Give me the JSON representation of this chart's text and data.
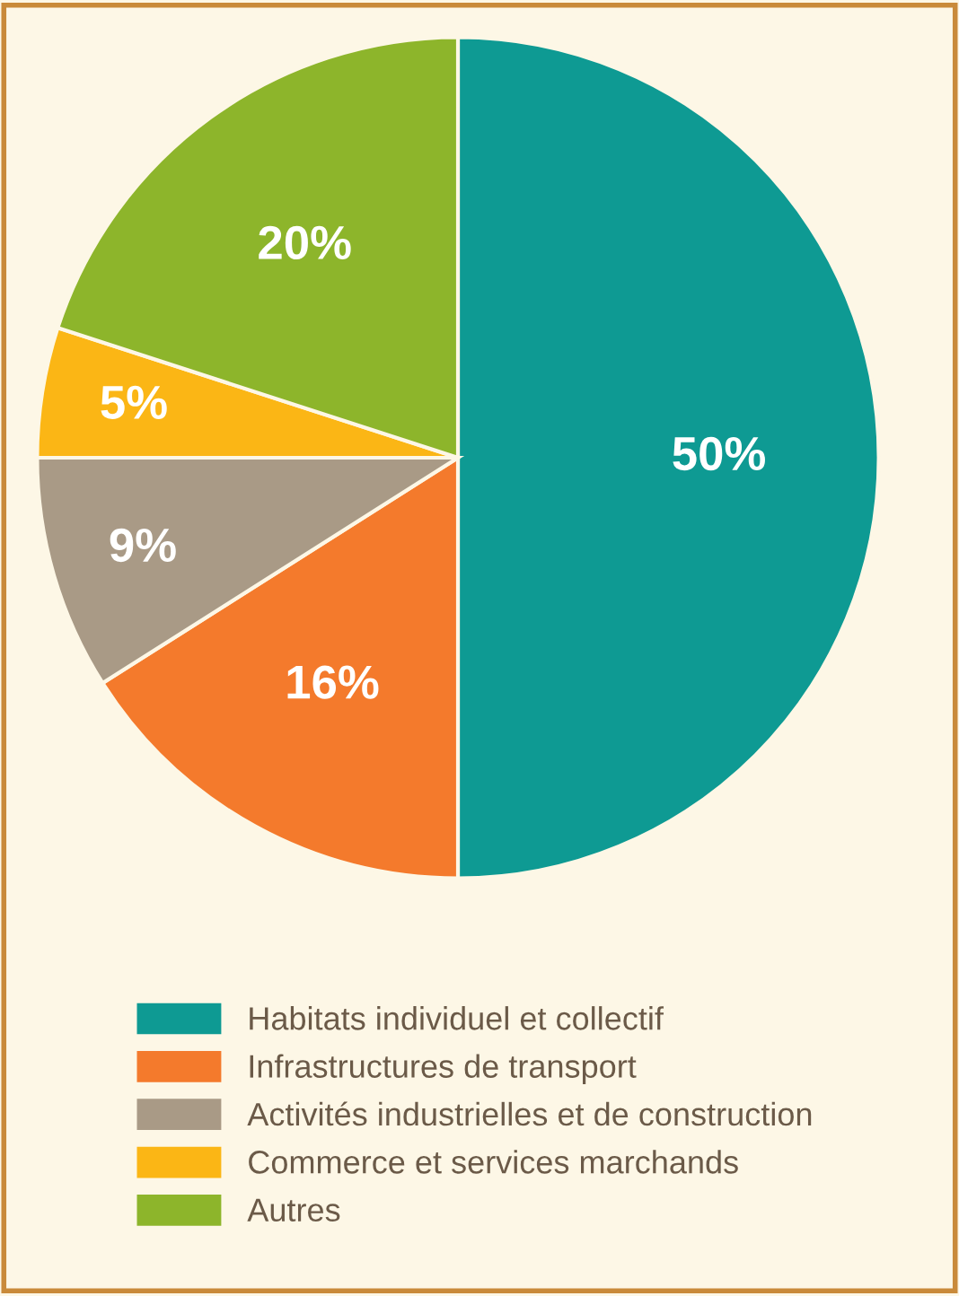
{
  "chart_data": {
    "type": "pie",
    "categories": [
      "Habitats individuel et collectif",
      "Infrastructures de transport",
      "Activités industrielles et de construction",
      "Commerce et services marchands",
      "Autres"
    ],
    "values": [
      50,
      16,
      9,
      5,
      20
    ],
    "colors": [
      "#0e9a93",
      "#f47a2c",
      "#a99a86",
      "#fbb615",
      "#8db52b"
    ],
    "value_labels": [
      "50%",
      "16%",
      "9%",
      "5%",
      "20%"
    ],
    "legend": "bottom"
  }
}
